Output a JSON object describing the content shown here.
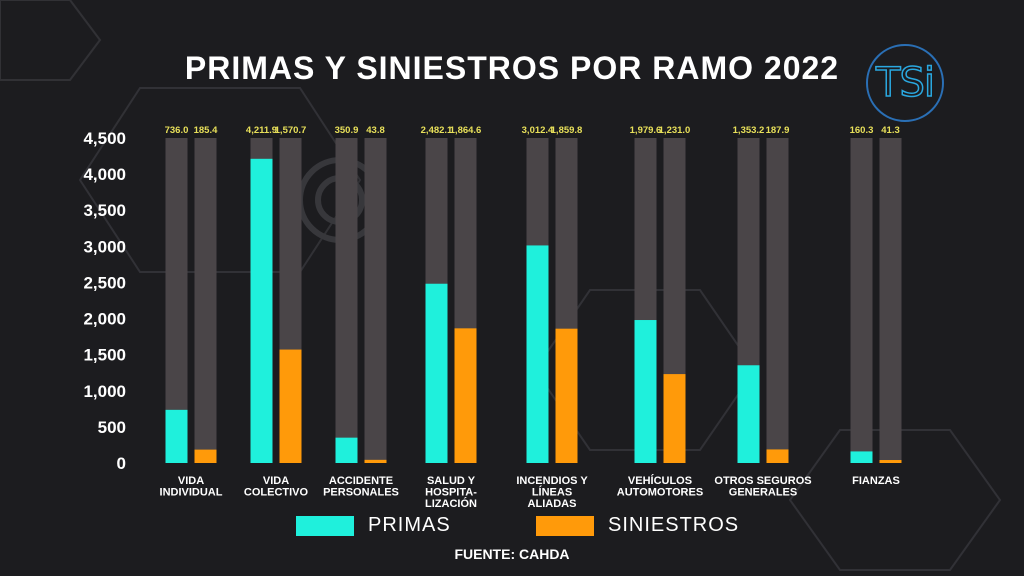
{
  "title": "PRIMAS Y SINIESTROS POR RAMO 2022",
  "logo_text": "TSi",
  "source": "FUENTE: CAHDA",
  "colors": {
    "primas": "#1ff0dc",
    "siniestros": "#ff9a0a",
    "track": "#4a4548",
    "value_label": "#e8e05a",
    "background": "#1c1c1f"
  },
  "chart_data": {
    "type": "bar",
    "title": "PRIMAS Y SINIESTROS POR RAMO 2022",
    "ylim": [
      0,
      4500
    ],
    "yticks": [
      0,
      500,
      1000,
      1500,
      2000,
      2500,
      3000,
      3500,
      4000,
      4500
    ],
    "ytick_labels": [
      "0",
      "500",
      "1,000",
      "1,500",
      "2,000",
      "2,500",
      "3,000",
      "3,500",
      "4,000",
      "4,500"
    ],
    "grid": false,
    "legend_position": "bottom",
    "categories": [
      [
        "VIDA",
        "INDIVIDUAL"
      ],
      [
        "VIDA",
        "COLECTIVO"
      ],
      [
        "ACCIDENTE",
        "PERSONALES"
      ],
      [
        "SALUD Y",
        "HOSPITA-",
        "LIZACIÓN"
      ],
      [
        "INCENDIOS Y",
        "LÍNEAS",
        "ALIADAS"
      ],
      [
        "VEHÍCULOS",
        "AUTOMOTORES"
      ],
      [
        "OTROS SEGUROS",
        "GENERALES"
      ],
      [
        "FIANZAS"
      ]
    ],
    "series": [
      {
        "name": "PRIMAS",
        "values": [
          736.0,
          4211.9,
          350.9,
          2482.1,
          3012.4,
          1979.6,
          1353.2,
          160.3
        ],
        "labels": [
          "736.0",
          "4,211.9",
          "350.9",
          "2,482.1",
          "3,012.4",
          "1,979.6",
          "1,353.2",
          "160.3"
        ]
      },
      {
        "name": "SINIESTROS",
        "values": [
          185.4,
          1570.7,
          43.8,
          1864.6,
          1859.8,
          1231.0,
          187.9,
          41.3
        ],
        "labels": [
          "185.4",
          "1,570.7",
          "43.8",
          "1,864.6",
          "1,859.8",
          "1,231.0",
          "187.9",
          "41.3"
        ]
      }
    ]
  }
}
